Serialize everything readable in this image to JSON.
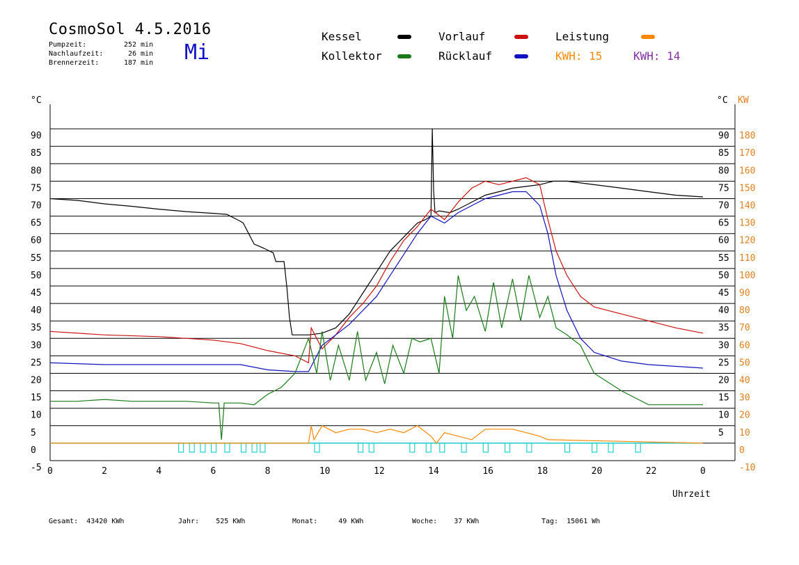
{
  "header": {
    "title": "CosmoSol 4.5.2016",
    "weekday": "Mi",
    "stats": [
      {
        "label": "Pumpzeit:",
        "value": "252",
        "unit": "min"
      },
      {
        "label": "Nachlaufzeit:",
        "value": "26",
        "unit": "min"
      },
      {
        "label": "Brennerzeit:",
        "value": "187",
        "unit": "min"
      }
    ]
  },
  "legend": {
    "kessel": "Kessel",
    "kollektor": "Kollektor",
    "vorlauf": "Vorlauf",
    "ruecklauf": "Rücklauf",
    "leistung": "Leistung",
    "kwh1_label": "KWH:",
    "kwh1_value": "15",
    "kwh2_label": "KWH:",
    "kwh2_value": "14"
  },
  "colors": {
    "kessel": "#000000",
    "kollektor": "#1a7a1a",
    "vorlauf": "#cc1010",
    "ruecklauf": "#1010c0",
    "leistung": "#ff8800",
    "kwh2": "#8030a0",
    "pump": "#20d0d0",
    "right_axis": "#e08020"
  },
  "footer": {
    "items": [
      {
        "label": "Gesamt:",
        "value": "43420 KWh"
      },
      {
        "label": "Jahr:",
        "value": "525 KWh"
      },
      {
        "label": "Monat:",
        "value": "49 KWh"
      },
      {
        "label": "Woche:",
        "value": "37 KWh"
      },
      {
        "label": "Tag:",
        "value": "15061 Wh"
      }
    ]
  },
  "chart_data": {
    "type": "line",
    "xlabel": "Uhrzeit",
    "x_ticks": [
      "0",
      "2",
      "4",
      "6",
      "8",
      "10",
      "12",
      "14",
      "16",
      "18",
      "20",
      "22",
      "0"
    ],
    "xlim": [
      0,
      24
    ],
    "ylabel": "°C",
    "ylim": [
      -5,
      95
    ],
    "y_ticks": [
      "-5",
      "0",
      "5",
      "10",
      "15",
      "20",
      "25",
      "30",
      "35",
      "40",
      "45",
      "50",
      "55",
      "60",
      "65",
      "70",
      "75",
      "80",
      "85",
      "90"
    ],
    "y2label": "KW",
    "y2_ticks": [
      "-10",
      "0",
      "10",
      "20",
      "30",
      "40",
      "50",
      "60",
      "70",
      "80",
      "90",
      "100",
      "110",
      "120",
      "130",
      "140",
      "150",
      "160",
      "170",
      "180"
    ],
    "y2_right_inner_ticks": [
      "5",
      "10",
      "15",
      "20",
      "25",
      "30",
      "35",
      "40",
      "45",
      "50",
      "55",
      "60",
      "65",
      "70",
      "75",
      "80",
      "85",
      "90"
    ],
    "grid": true,
    "series": [
      {
        "name": "Kessel",
        "color": "#000000",
        "x": [
          0,
          1,
          2,
          3,
          4,
          5,
          6,
          6.5,
          7,
          7.1,
          7.3,
          7.5,
          7.8,
          8.2,
          8.3,
          8.6,
          8.7,
          8.8,
          8.9,
          9.5,
          10,
          10.5,
          11,
          11.5,
          12,
          12.5,
          13,
          13.5,
          13.8,
          14,
          14.05,
          14.1,
          14.15,
          14.3,
          14.7,
          15,
          15.5,
          16,
          16.5,
          17,
          17.5,
          18,
          18.5,
          19,
          20,
          21,
          22,
          23,
          24
        ],
        "y": [
          70,
          69.5,
          68.5,
          67.8,
          67,
          66.3,
          65.8,
          65.5,
          63.5,
          63,
          60,
          57,
          56,
          54.5,
          52,
          52,
          45,
          36,
          31,
          31,
          31.5,
          33,
          37,
          43,
          49,
          55,
          59,
          63,
          64,
          65,
          90,
          72,
          66,
          66.5,
          66,
          67,
          69,
          71,
          72,
          73,
          73.5,
          74,
          75,
          75,
          74,
          73,
          72,
          71,
          70.5
        ]
      },
      {
        "name": "Vorlauf",
        "color": "#cc1010",
        "x": [
          0,
          2,
          4,
          6,
          7,
          8,
          9,
          9.5,
          9.6,
          10,
          10.5,
          11,
          11.5,
          12,
          12.5,
          13,
          13.5,
          14,
          14.5,
          15,
          15.5,
          16,
          16.5,
          17,
          17.5,
          18,
          18.3,
          18.6,
          19,
          19.5,
          20,
          21,
          22,
          23,
          24
        ],
        "y": [
          32,
          31,
          30.5,
          29.5,
          28.5,
          26.5,
          25,
          23,
          33,
          27,
          31,
          36,
          40,
          45,
          52,
          58,
          62,
          67,
          64,
          69,
          73,
          75,
          74,
          75,
          76,
          74,
          64,
          55,
          48,
          42,
          39,
          37,
          35,
          33,
          31.5
        ]
      },
      {
        "name": "Rücklauf",
        "color": "#1010c0",
        "x": [
          0,
          2,
          4,
          6,
          7,
          8,
          9,
          9.5,
          9.6,
          10,
          10.5,
          11,
          11.5,
          12,
          12.5,
          13,
          13.5,
          14,
          14.5,
          15,
          15.5,
          16,
          16.5,
          17,
          17.5,
          18,
          18.3,
          18.6,
          19,
          19.5,
          20,
          21,
          22,
          23,
          24
        ],
        "y": [
          23,
          22.5,
          22.5,
          22.5,
          22.5,
          21,
          20.5,
          20.5,
          22,
          28,
          31,
          34,
          38,
          42,
          48,
          54,
          60,
          65,
          63,
          66,
          68,
          70,
          71,
          72,
          72,
          68,
          60,
          48,
          38,
          30,
          26,
          23.5,
          22.5,
          22,
          21.5
        ]
      },
      {
        "name": "Kollektor",
        "color": "#1a7a1a",
        "x": [
          0,
          1,
          2,
          3,
          4,
          5,
          6,
          6.2,
          6.3,
          6.4,
          6.6,
          7,
          7.5,
          8,
          8.5,
          9,
          9.5,
          9.8,
          10,
          10.3,
          10.6,
          11,
          11.3,
          11.6,
          12,
          12.3,
          12.6,
          13,
          13.3,
          13.6,
          14,
          14.3,
          14.5,
          14.8,
          15,
          15.3,
          15.6,
          16,
          16.3,
          16.6,
          17,
          17.3,
          17.6,
          18,
          18.3,
          18.6,
          19,
          19.5,
          20,
          21,
          22,
          23,
          24
        ],
        "y": [
          12,
          12,
          12.5,
          12,
          12,
          12,
          11.5,
          11.5,
          1,
          11.5,
          11.5,
          11.5,
          11,
          14,
          16,
          20,
          30,
          20,
          32,
          18,
          28,
          18,
          32,
          18,
          26,
          17,
          28,
          20,
          30,
          29,
          30,
          20,
          42,
          30,
          48,
          38,
          42,
          32,
          46,
          33,
          47,
          35,
          48,
          36,
          42,
          33,
          31,
          28,
          20,
          15,
          11,
          11,
          11
        ]
      },
      {
        "name": "Leistung",
        "color": "#ff8800",
        "x": [
          0,
          9.5,
          9.6,
          9.7,
          10,
          10.5,
          11,
          11.5,
          12,
          12.5,
          13,
          13.5,
          14,
          14.2,
          14.5,
          15,
          15.5,
          16,
          16.5,
          17,
          17.5,
          18,
          18.3,
          24
        ],
        "y": [
          0,
          0,
          5,
          1,
          5,
          3,
          4,
          4,
          3,
          4,
          3,
          5,
          2,
          0,
          3,
          2,
          1,
          4,
          4,
          4,
          3,
          2,
          1,
          0
        ]
      }
    ],
    "pump_markers_hours": [
      4.8,
      5.2,
      5.6,
      6.0,
      6.5,
      7.1,
      7.5,
      7.8,
      9.8,
      11.4,
      11.8,
      13.3,
      13.9,
      14.4,
      15.2,
      16.0,
      16.8,
      17.6,
      19.0,
      20.0,
      20.6,
      21.6
    ]
  }
}
